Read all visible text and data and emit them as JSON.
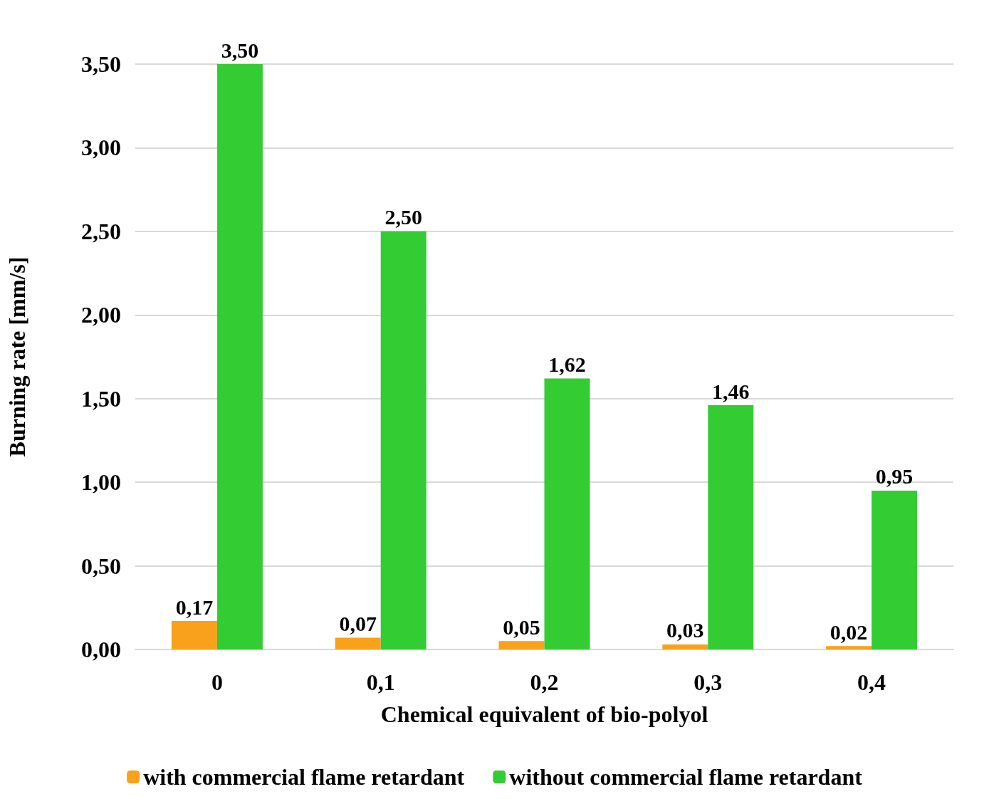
{
  "chart_data": {
    "type": "bar",
    "xlabel": "Chemical equivalent of bio-polyol",
    "ylabel": "Burning rate [mm/s]",
    "categories": [
      "0",
      "0,1",
      "0,2",
      "0,3",
      "0,4"
    ],
    "series": [
      {
        "name": "with commercial flame retardant",
        "color": "#f9a11b",
        "values": [
          0.17,
          0.07,
          0.05,
          0.03,
          0.02
        ],
        "value_labels": [
          "0,17",
          "0,07",
          "0,05",
          "0,03",
          "0,02"
        ]
      },
      {
        "name": "without commercial flame retardant",
        "color": "#33cc33",
        "values": [
          3.5,
          2.5,
          1.62,
          1.46,
          0.95
        ],
        "value_labels": [
          "3,50",
          "2,50",
          "1,62",
          "1,46",
          "0,95"
        ]
      }
    ],
    "ylim": [
      0,
      3.5
    ],
    "yticks": [
      {
        "value": 0,
        "label": "0,00"
      },
      {
        "value": 0.5,
        "label": "0,50"
      },
      {
        "value": 1,
        "label": "1,00"
      },
      {
        "value": 1.5,
        "label": "1,50"
      },
      {
        "value": 2,
        "label": "2,00"
      },
      {
        "value": 2.5,
        "label": "2,50"
      },
      {
        "value": 3,
        "label": "3,00"
      },
      {
        "value": 3.5,
        "label": "3,50"
      }
    ],
    "grid": "y",
    "legend": "bottom"
  }
}
